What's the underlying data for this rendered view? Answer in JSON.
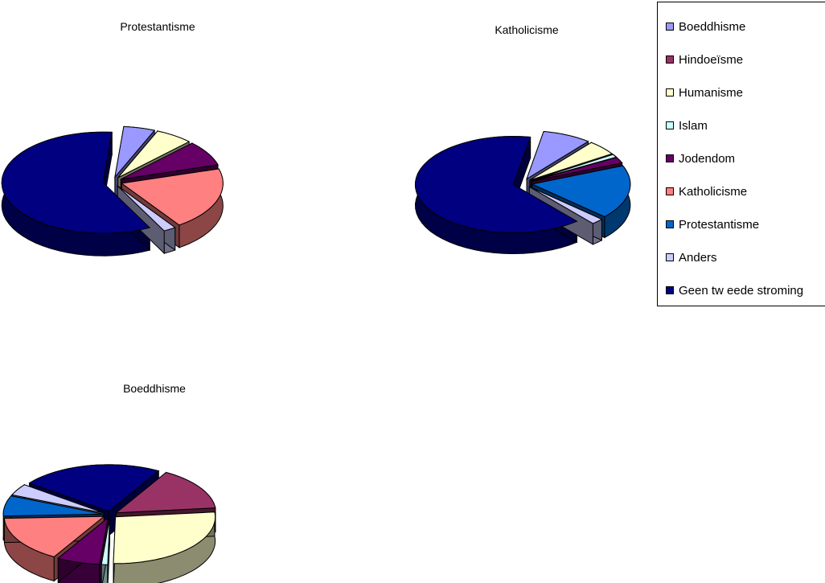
{
  "legend": {
    "items": [
      {
        "label": "Boeddhisme",
        "color": "#9999ff"
      },
      {
        "label": "Hindoeïsme",
        "color": "#993366"
      },
      {
        "label": "Humanisme",
        "color": "#ffffcc"
      },
      {
        "label": "Islam",
        "color": "#ccffff"
      },
      {
        "label": "Jodendom",
        "color": "#660066"
      },
      {
        "label": "Katholicisme",
        "color": "#ff8080"
      },
      {
        "label": "Protestantisme",
        "color": "#0066cc"
      },
      {
        "label": "Anders",
        "color": "#ccccff"
      },
      {
        "label": "Geen tw eede stroming",
        "color": "#000080"
      }
    ]
  },
  "chart_data": [
    {
      "type": "pie",
      "title": "Protestantisme",
      "legend_position": "right",
      "series": [
        {
          "name": "Boeddhisme",
          "value": 5
        },
        {
          "name": "Hindoeïsme",
          "value": 0
        },
        {
          "name": "Humanisme",
          "value": 6
        },
        {
          "name": "Islam",
          "value": 0
        },
        {
          "name": "Jodendom",
          "value": 8
        },
        {
          "name": "Katholicisme",
          "value": 20
        },
        {
          "name": "Protestantisme",
          "value": 0
        },
        {
          "name": "Anders",
          "value": 2
        },
        {
          "name": "Geen tw eede stroming",
          "value": 59
        }
      ]
    },
    {
      "type": "pie",
      "title": "Katholicisme",
      "legend_position": "right",
      "series": [
        {
          "name": "Boeddhisme",
          "value": 8
        },
        {
          "name": "Hindoeïsme",
          "value": 0
        },
        {
          "name": "Humanisme",
          "value": 5
        },
        {
          "name": "Islam",
          "value": 1
        },
        {
          "name": "Jodendom",
          "value": 2
        },
        {
          "name": "Katholicisme",
          "value": 0
        },
        {
          "name": "Protestantisme",
          "value": 18
        },
        {
          "name": "Anders",
          "value": 2
        },
        {
          "name": "Geen tw eede stroming",
          "value": 64
        }
      ]
    },
    {
      "type": "pie",
      "title": "Boeddhisme",
      "legend_position": "right",
      "series": [
        {
          "name": "Boeddhisme",
          "value": 0
        },
        {
          "name": "Hindoeïsme",
          "value": 15
        },
        {
          "name": "Humanisme",
          "value": 27
        },
        {
          "name": "Islam",
          "value": 1
        },
        {
          "name": "Jodendom",
          "value": 7
        },
        {
          "name": "Katholicisme",
          "value": 16
        },
        {
          "name": "Protestantisme",
          "value": 7
        },
        {
          "name": "Anders",
          "value": 4
        },
        {
          "name": "Geen tw eede stroming",
          "value": 23
        }
      ]
    }
  ]
}
